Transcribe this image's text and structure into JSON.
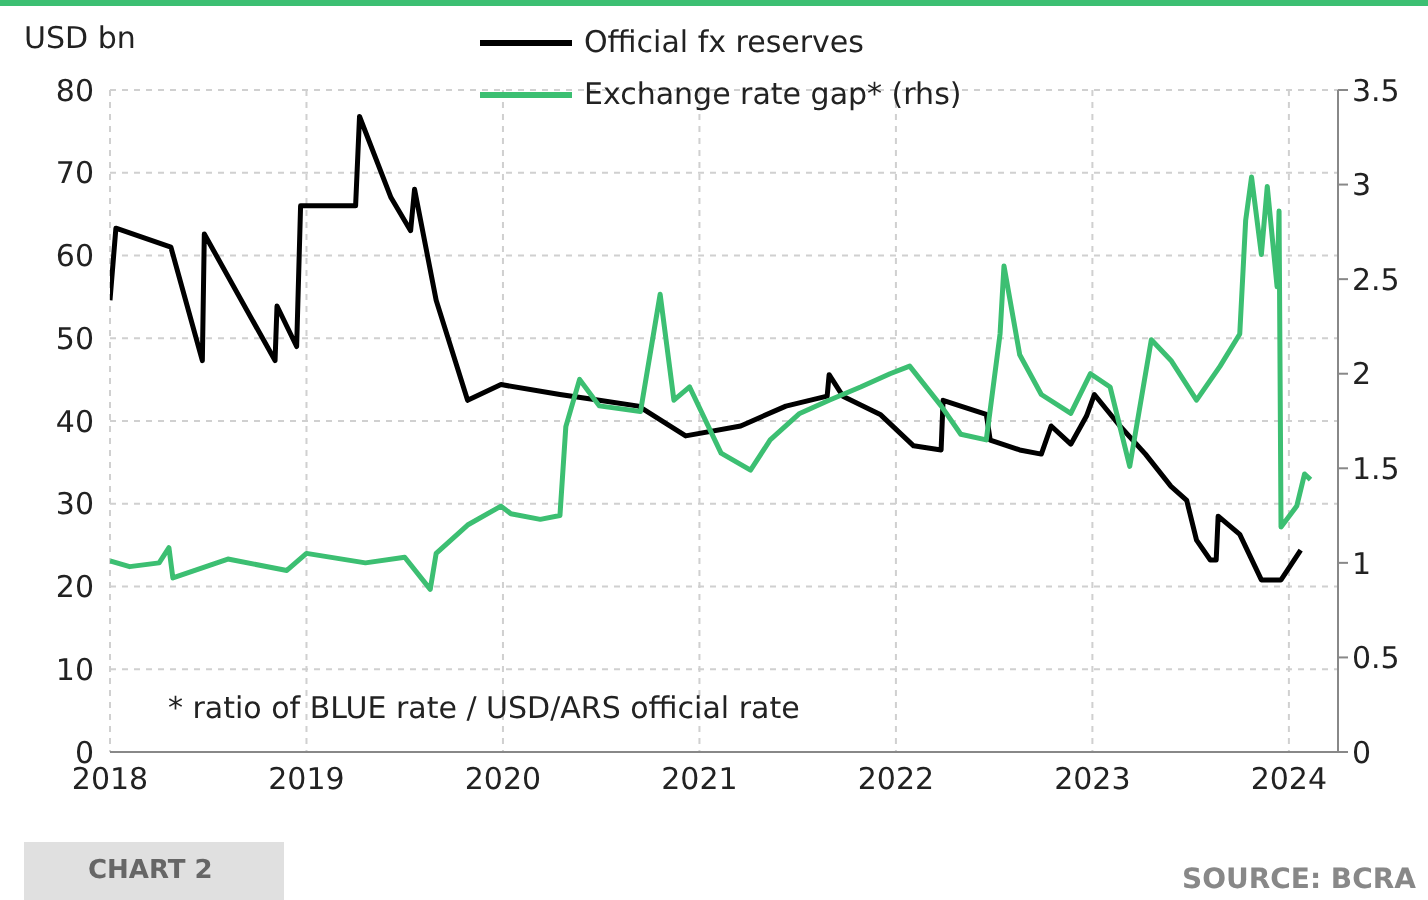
{
  "chart_data": {
    "type": "line",
    "ylabel": "USD bn",
    "legend": "top",
    "grid": true,
    "line_style": "solid",
    "marker": "none",
    "xlim": [
      2018,
      2024.25
    ],
    "xticks": [
      2018,
      2019,
      2020,
      2021,
      2022,
      2023,
      2024
    ],
    "ylim": [
      0,
      80
    ],
    "yticks": [
      0,
      10,
      20,
      30,
      40,
      50,
      60,
      70,
      80
    ],
    "y2lim": [
      0,
      3.5
    ],
    "y2ticks": [
      0,
      0.5,
      1,
      1.5,
      2,
      2.5,
      3,
      3.5
    ],
    "series": [
      {
        "name": "Official fx reserves",
        "color": "#000000",
        "x": [
          2018.0,
          2018.03,
          2018.31,
          2018.47,
          2018.48,
          2018.84,
          2018.85,
          2018.95,
          2018.97,
          2019.25,
          2019.27,
          2019.43,
          2019.53,
          2019.55,
          2019.66,
          2019.82,
          2019.99,
          2020.29,
          2020.49,
          2020.69,
          2020.93,
          2021.21,
          2021.44,
          2021.65,
          2021.66,
          2021.73,
          2021.92,
          2022.09,
          2022.23,
          2022.24,
          2022.33,
          2022.46,
          2022.48,
          2022.63,
          2022.74,
          2022.79,
          2022.89,
          2022.97,
          2023.01,
          2023.14,
          2023.27,
          2023.4,
          2023.48,
          2023.53,
          2023.6,
          2023.63,
          2023.64,
          2023.75,
          2023.86,
          2023.96,
          2024.06
        ],
        "values": [
          54.6,
          63.3,
          61,
          47.3,
          62.6,
          47.3,
          53.9,
          49,
          66,
          66,
          76.8,
          67,
          63,
          68,
          54.6,
          42.5,
          44.4,
          43.2,
          42.5,
          41.8,
          38.2,
          39.4,
          41.8,
          43,
          45.6,
          43,
          40.8,
          37,
          36.5,
          42.5,
          41.8,
          40.8,
          37.7,
          36.5,
          36,
          39.4,
          37.2,
          40.6,
          43.2,
          39.4,
          36,
          32.1,
          30.4,
          25.6,
          23.2,
          23.2,
          28.5,
          26.3,
          20.8,
          20.8,
          24.4
        ]
      },
      {
        "name": "Exchange rate gap* (rhs)",
        "color": "#3cbf72",
        "axis": "y2",
        "x": [
          2018.0,
          2018.1,
          2018.25,
          2018.3,
          2018.32,
          2018.6,
          2018.9,
          2019.0,
          2019.3,
          2019.5,
          2019.63,
          2019.66,
          2019.82,
          2019.99,
          2020.04,
          2020.19,
          2020.29,
          2020.32,
          2020.39,
          2020.49,
          2020.7,
          2020.8,
          2020.87,
          2020.95,
          2021.11,
          2021.26,
          2021.36,
          2021.51,
          2021.66,
          2021.82,
          2021.97,
          2022.07,
          2022.23,
          2022.33,
          2022.46,
          2022.53,
          2022.55,
          2022.63,
          2022.74,
          2022.89,
          2022.99,
          2023.09,
          2023.19,
          2023.3,
          2023.4,
          2023.53,
          2023.65,
          2023.75,
          2023.78,
          2023.81,
          2023.86,
          2023.89,
          2023.94,
          2023.95,
          2023.96,
          2024.04,
          2024.08,
          2024.11
        ],
        "values": [
          1.01,
          0.98,
          1.0,
          1.08,
          0.92,
          1.02,
          0.96,
          1.05,
          1.0,
          1.03,
          0.86,
          1.05,
          1.2,
          1.3,
          1.26,
          1.23,
          1.25,
          1.72,
          1.97,
          1.83,
          1.8,
          2.42,
          1.86,
          1.93,
          1.58,
          1.49,
          1.65,
          1.79,
          1.86,
          1.93,
          2.0,
          2.04,
          1.83,
          1.68,
          1.65,
          2.21,
          2.57,
          2.1,
          1.89,
          1.79,
          2.0,
          1.93,
          1.51,
          2.18,
          2.07,
          1.86,
          2.04,
          2.21,
          2.81,
          3.04,
          2.63,
          2.99,
          2.46,
          2.86,
          1.19,
          1.3,
          1.47,
          1.44
        ]
      }
    ],
    "annotations": [
      "* ratio of BLUE rate / USD/ARS official rate",
      "CHART 2",
      "SOURCE: BCRA"
    ]
  }
}
